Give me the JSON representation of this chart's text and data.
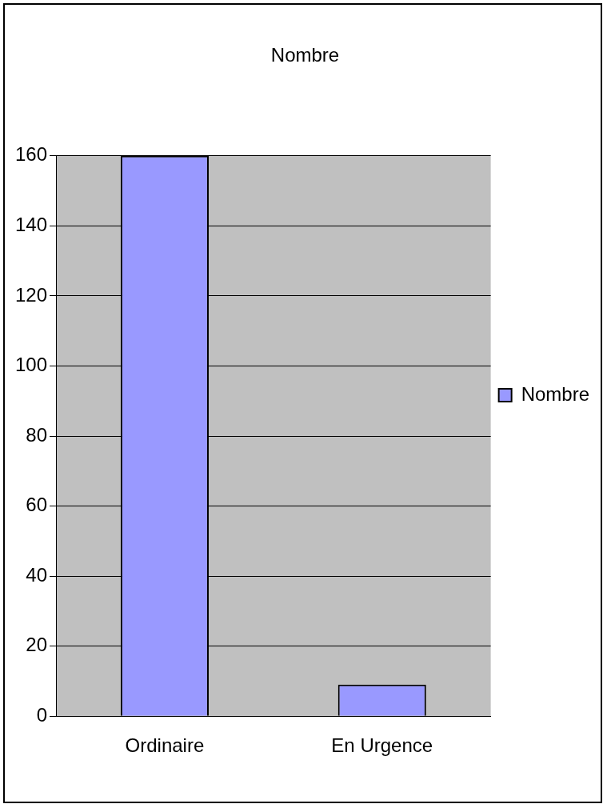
{
  "chart_data": {
    "type": "bar",
    "title": "Nombre",
    "categories": [
      "Ordinaire",
      "En Urgence"
    ],
    "series": [
      {
        "name": "Nombre",
        "color": "#9999ff",
        "values": [
          160,
          9
        ]
      }
    ],
    "ylim": [
      0,
      160
    ],
    "yticks": [
      0,
      20,
      40,
      60,
      80,
      100,
      120,
      140,
      160
    ],
    "grid": "y",
    "legend": "right"
  }
}
